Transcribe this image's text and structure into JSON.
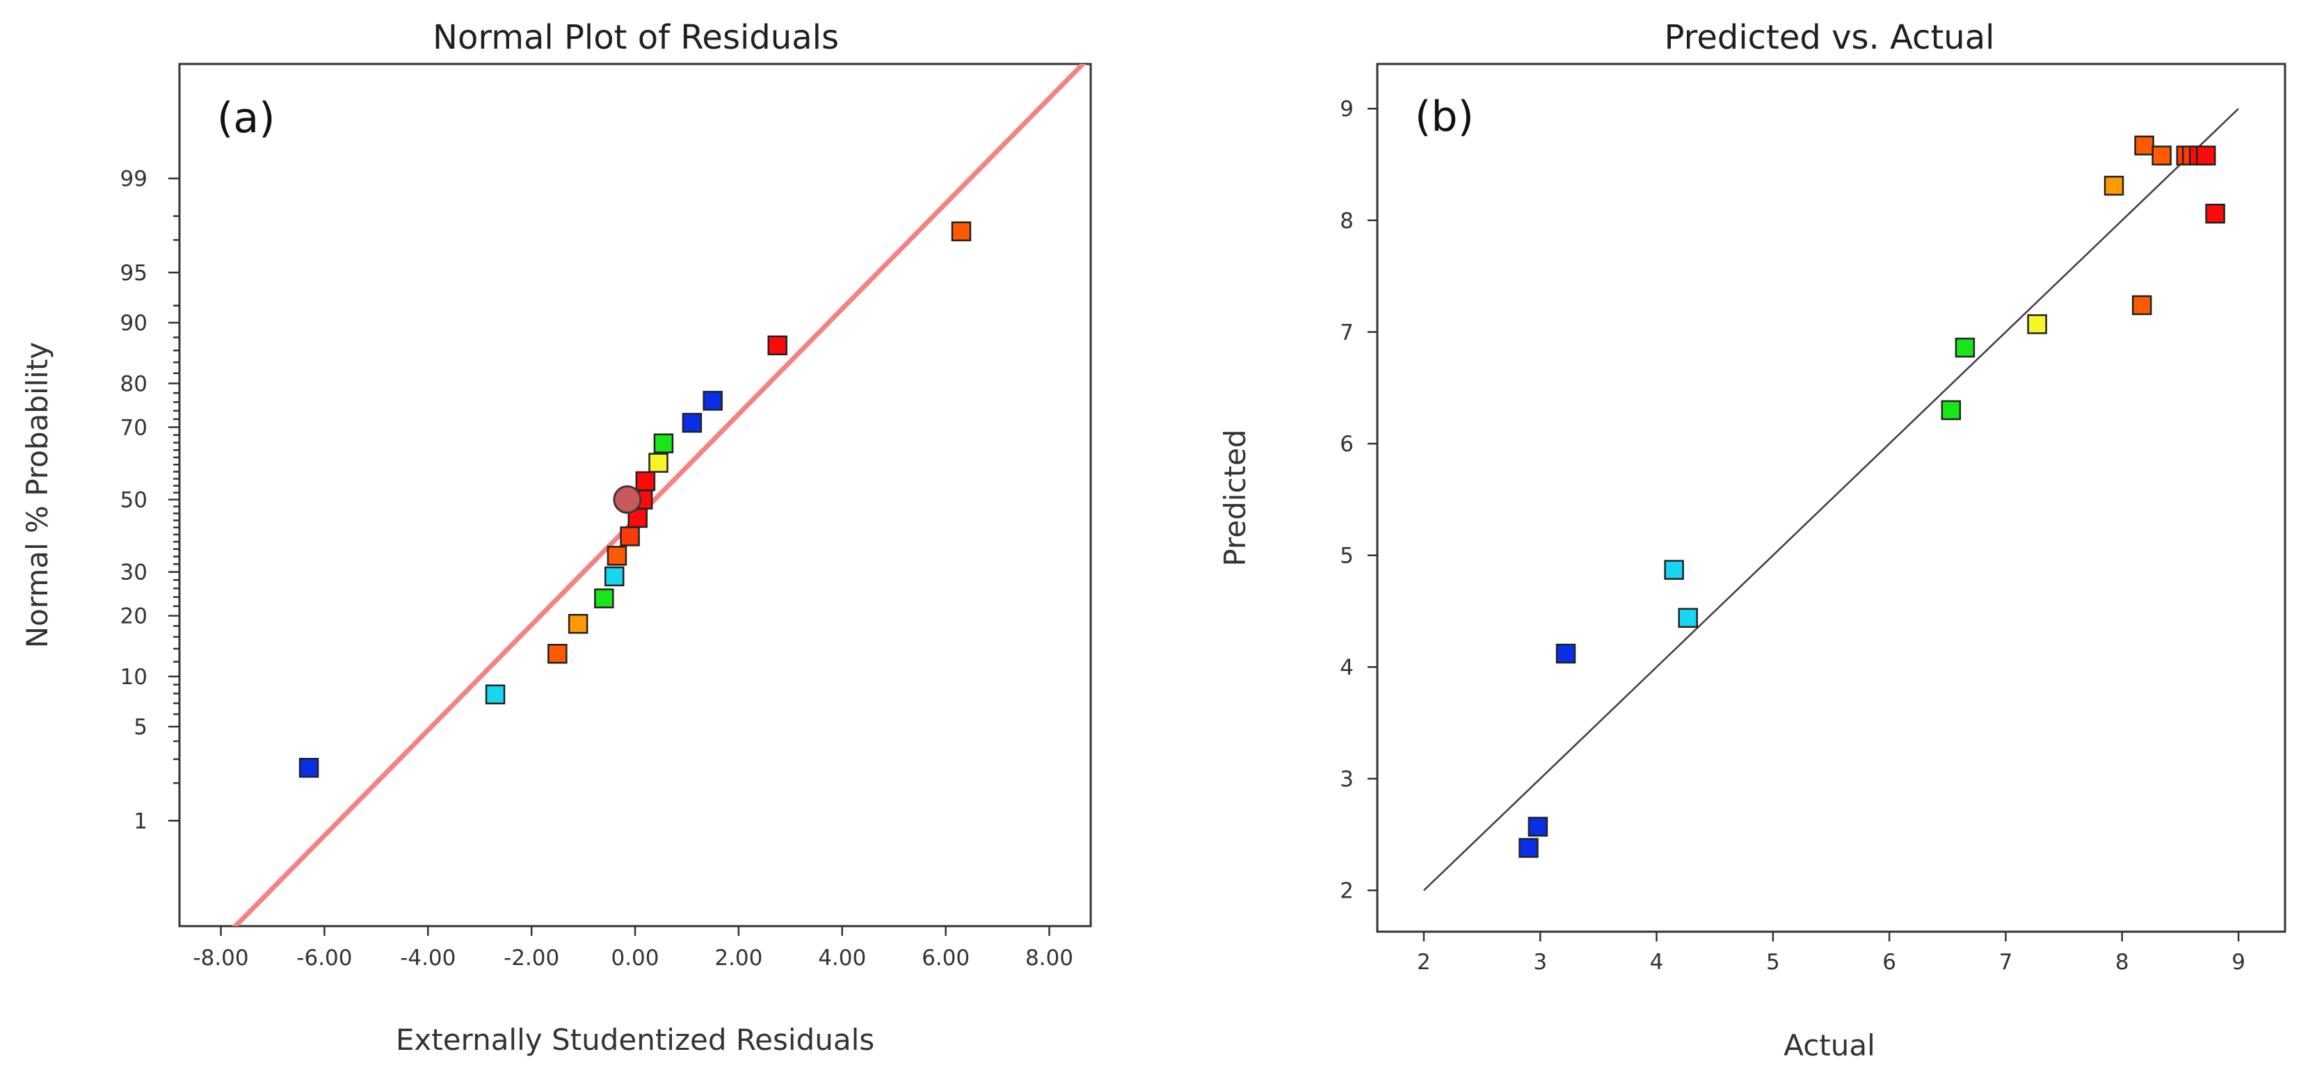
{
  "colors": {
    "blue": "#0a2ee6",
    "cyan": "#19d6f0",
    "green": "#19e619",
    "yellow": "#f5f528",
    "orange": "#ff9a00",
    "orange_red": "#ff5a00",
    "red_orange": "#ff3a0a",
    "red": "#ff0a0a",
    "fit_line_a": "#f58282",
    "fit_line_b": "#3c3c3c",
    "median_marker": "#c85a5a"
  },
  "chart_data": [
    {
      "type": "scatter",
      "panel_label": "(a)",
      "title": "Normal Plot of Residuals",
      "xlabel": "Externally Studentized Residuals",
      "ylabel": "Normal % Probability",
      "xlim": [
        -8.8,
        8.8
      ],
      "y_scale": "normal-probability",
      "ylim": [
        0.1,
        99.92
      ],
      "x_ticks": [
        -8,
        -6,
        -4,
        -2,
        0,
        2,
        4,
        6,
        8
      ],
      "x_tick_labels": [
        "-8.00",
        "-6.00",
        "-4.00",
        "-2.00",
        "0.00",
        "2.00",
        "4.00",
        "6.00",
        "8.00"
      ],
      "y_ticks_labeled": [
        1,
        5,
        10,
        20,
        30,
        50,
        70,
        80,
        90,
        95,
        99
      ],
      "y_tick_labels": [
        "1",
        "5",
        "10",
        "20",
        "30",
        "50",
        "70",
        "80",
        "90",
        "95",
        "99"
      ],
      "y_ticks_minor": [
        2,
        3,
        4,
        6,
        7,
        8,
        9,
        12,
        14,
        16,
        18,
        22,
        24,
        26,
        28,
        32,
        34,
        36,
        38,
        40,
        42,
        44,
        46,
        48,
        52,
        54,
        56,
        58,
        60,
        62,
        64,
        66,
        68,
        72,
        74,
        76,
        78,
        82,
        84,
        86,
        88,
        92,
        97,
        98
      ],
      "reference_line": {
        "x": [
          -7.8,
          9.5
        ],
        "y": [
          0.09,
          99.975
        ]
      },
      "median_marker": {
        "x": -0.15,
        "y": 50
      },
      "points": [
        {
          "x": -6.3,
          "y": 2.6,
          "color": "blue"
        },
        {
          "x": -2.7,
          "y": 7.9,
          "color": "cyan"
        },
        {
          "x": -1.5,
          "y": 13.2,
          "color": "orange_red"
        },
        {
          "x": -1.1,
          "y": 18.4,
          "color": "orange"
        },
        {
          "x": -0.6,
          "y": 23.7,
          "color": "green"
        },
        {
          "x": -0.4,
          "y": 28.9,
          "color": "cyan"
        },
        {
          "x": -0.35,
          "y": 34.2,
          "color": "orange_red"
        },
        {
          "x": -0.1,
          "y": 39.5,
          "color": "red_orange"
        },
        {
          "x": 0.05,
          "y": 44.7,
          "color": "red"
        },
        {
          "x": 0.15,
          "y": 50.0,
          "color": "red"
        },
        {
          "x": 0.2,
          "y": 55.3,
          "color": "red"
        },
        {
          "x": 0.45,
          "y": 60.5,
          "color": "yellow"
        },
        {
          "x": 0.55,
          "y": 65.8,
          "color": "green"
        },
        {
          "x": 1.1,
          "y": 71.1,
          "color": "blue"
        },
        {
          "x": 1.5,
          "y": 76.3,
          "color": "blue"
        },
        {
          "x": 2.75,
          "y": 86.8,
          "color": "red"
        },
        {
          "x": 6.3,
          "y": 97.4,
          "color": "orange_red"
        }
      ]
    },
    {
      "type": "scatter",
      "panel_label": "(b)",
      "title": "Predicted vs. Actual",
      "xlabel": "Actual",
      "ylabel": "Predicted",
      "xlim": [
        1.6,
        9.4
      ],
      "ylim": [
        1.63,
        9.4
      ],
      "x_ticks": [
        2,
        3,
        4,
        5,
        6,
        7,
        8,
        9
      ],
      "x_tick_labels": [
        "2",
        "3",
        "4",
        "5",
        "6",
        "7",
        "8",
        "9"
      ],
      "y_ticks": [
        2,
        3,
        4,
        5,
        6,
        7,
        8,
        9
      ],
      "y_tick_labels": [
        "2",
        "3",
        "4",
        "5",
        "6",
        "7",
        "8",
        "9"
      ],
      "reference_line": {
        "x": [
          2,
          9
        ],
        "y": [
          2,
          9
        ]
      },
      "points": [
        {
          "x": 2.9,
          "y": 2.38,
          "color": "blue"
        },
        {
          "x": 2.98,
          "y": 2.57,
          "color": "blue"
        },
        {
          "x": 3.22,
          "y": 4.12,
          "color": "blue"
        },
        {
          "x": 4.15,
          "y": 4.87,
          "color": "cyan"
        },
        {
          "x": 4.27,
          "y": 4.44,
          "color": "cyan"
        },
        {
          "x": 6.53,
          "y": 6.3,
          "color": "green"
        },
        {
          "x": 6.65,
          "y": 6.86,
          "color": "green"
        },
        {
          "x": 7.27,
          "y": 7.07,
          "color": "yellow"
        },
        {
          "x": 7.93,
          "y": 8.31,
          "color": "orange"
        },
        {
          "x": 8.17,
          "y": 7.24,
          "color": "orange_red"
        },
        {
          "x": 8.19,
          "y": 8.67,
          "color": "orange_red"
        },
        {
          "x": 8.34,
          "y": 8.58,
          "color": "orange_red"
        },
        {
          "x": 8.55,
          "y": 8.58,
          "color": "red_orange"
        },
        {
          "x": 8.6,
          "y": 8.58,
          "color": "red_orange"
        },
        {
          "x": 8.66,
          "y": 8.58,
          "color": "red"
        },
        {
          "x": 8.72,
          "y": 8.58,
          "color": "red"
        },
        {
          "x": 8.8,
          "y": 8.06,
          "color": "red"
        }
      ]
    }
  ]
}
